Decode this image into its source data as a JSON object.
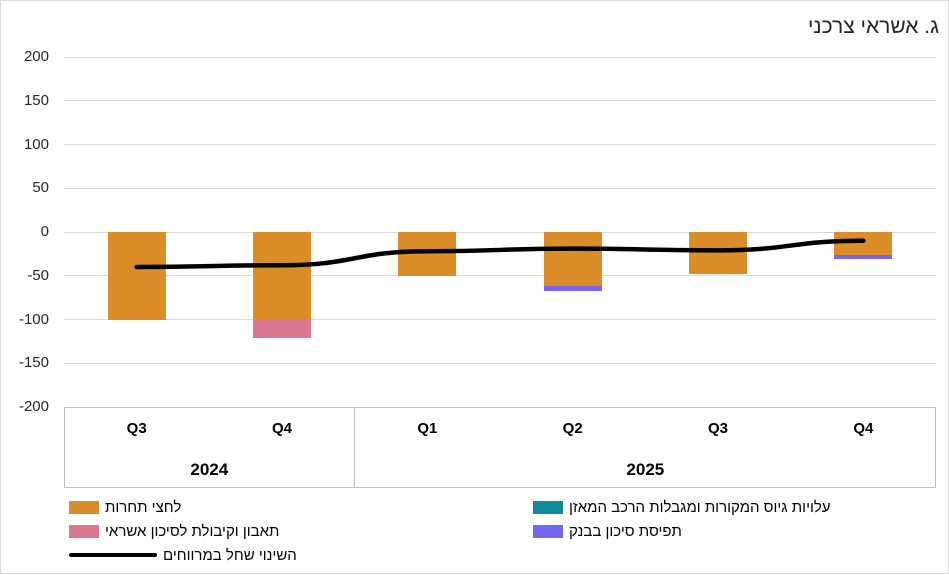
{
  "title": "ג. אשראי צרכני",
  "chart_data": {
    "type": "bar",
    "stacked": true,
    "rtl": true,
    "title": "ג. אשראי צרכני",
    "categories": [
      "Q3",
      "Q4",
      "Q1",
      "Q2",
      "Q3",
      "Q4"
    ],
    "year_groups": [
      {
        "label": "2024",
        "span": 2
      },
      {
        "label": "2025",
        "span": 4
      }
    ],
    "series": [
      {
        "name": "לחצי תחרות",
        "color": "#DA8D29",
        "values": [
          -100,
          -100,
          -50,
          -62,
          -48,
          -26
        ]
      },
      {
        "name": "עלויות גיוס המקורות ומגבלות הרכב המאזן",
        "color": "#108A99",
        "values": [
          0,
          0,
          0,
          0,
          0,
          0
        ]
      },
      {
        "name": "תאבון וקיבולת לסיכון אשראי",
        "color": "#D9788E",
        "values": [
          0,
          -21,
          0,
          0,
          0,
          0
        ]
      },
      {
        "name": "תפיסת סיכון בבנק",
        "color": "#7667F2",
        "values": [
          0,
          0,
          0,
          -5,
          0,
          -5
        ]
      }
    ],
    "line_series": {
      "name": "השינוי שחל במרווחים",
      "color": "#000000",
      "values": [
        -40,
        -38,
        -22,
        -19,
        -21,
        -10
      ]
    },
    "ylim": [
      -200,
      200
    ],
    "yticks": [
      200,
      150,
      100,
      50,
      0,
      -50,
      -100,
      -150,
      -200
    ],
    "grid": true,
    "gridline_color": "#D9D9D9",
    "axis_box_color": "#BFBFBF",
    "legend_position": "bottom"
  },
  "legend": {
    "columns": [
      {
        "items": [
          {
            "label": "לחצי תחרות",
            "marker": "rect",
            "color": "#DA8D29"
          },
          {
            "label": "תאבון וקיבולת לסיכון אשראי",
            "marker": "rect",
            "color": "#D9788E"
          },
          {
            "label": "השינוי שחל במרווחים",
            "marker": "line",
            "color": "#000000"
          }
        ]
      },
      {
        "items": [
          {
            "label": "עלויות גיוס המקורות ומגבלות הרכב המאזן",
            "marker": "rect",
            "color": "#108A99"
          },
          {
            "label": "תפיסת סיכון בבנק",
            "marker": "rect",
            "color": "#7667F2"
          }
        ]
      }
    ]
  }
}
